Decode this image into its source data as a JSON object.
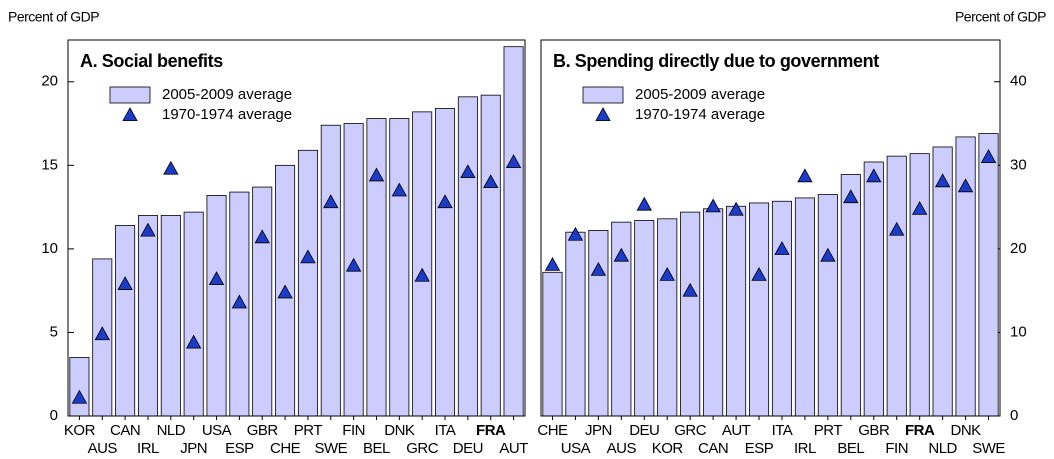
{
  "chart_data": [
    {
      "type": "bar",
      "title": "A. Social benefits",
      "ylabel": "Percent of GDP",
      "axis_side": "left",
      "highlight": "FRA",
      "categories": [
        "KOR",
        "AUS",
        "CAN",
        "IRL",
        "NLD",
        "JPN",
        "USA",
        "ESP",
        "GBR",
        "CHE",
        "PRT",
        "SWE",
        "FIN",
        "BEL",
        "DNK",
        "GRC",
        "ITA",
        "DEU",
        "FRA",
        "AUT"
      ],
      "series": [
        {
          "name": "2005-2009 average",
          "color": "#ccccff",
          "mark": "bar",
          "values": [
            3.5,
            9.4,
            11.4,
            12.0,
            12.0,
            12.2,
            13.2,
            13.4,
            13.7,
            15.0,
            15.9,
            17.4,
            17.5,
            17.8,
            17.8,
            18.2,
            18.4,
            19.1,
            19.2,
            22.1
          ]
        },
        {
          "name": "1970-1974 average",
          "color": "#1c3cc8",
          "mark": "triangle",
          "values": [
            1.1,
            4.9,
            7.9,
            11.1,
            14.8,
            4.4,
            8.2,
            6.8,
            10.7,
            7.4,
            9.5,
            12.8,
            9.0,
            14.4,
            13.5,
            8.4,
            12.8,
            14.6,
            14.0,
            15.2
          ]
        }
      ],
      "ylim": [
        0,
        22.5
      ],
      "yticks": [
        0,
        5,
        10,
        15,
        20
      ]
    },
    {
      "type": "bar",
      "title": "B. Spending directly due to government",
      "ylabel": "Percent of GDP",
      "axis_side": "right",
      "highlight": "FRA",
      "categories": [
        "CHE",
        "USA",
        "JPN",
        "AUS",
        "DEU",
        "KOR",
        "GRC",
        "CAN",
        "AUT",
        "ESP",
        "ITA",
        "IRL",
        "PRT",
        "BEL",
        "GBR",
        "FIN",
        "FRA",
        "NLD",
        "DNK",
        "SWE"
      ],
      "series": [
        {
          "name": "2005-2009 average",
          "color": "#ccccff",
          "mark": "bar",
          "values": [
            17.2,
            22.0,
            22.2,
            23.2,
            23.4,
            23.6,
            24.4,
            24.8,
            25.1,
            25.5,
            25.7,
            26.1,
            26.5,
            28.9,
            30.4,
            31.1,
            31.4,
            32.2,
            33.4,
            33.8
          ]
        },
        {
          "name": "1970-1974 average",
          "color": "#1c3cc8",
          "mark": "triangle",
          "values": [
            18.1,
            21.7,
            17.5,
            19.2,
            25.3,
            16.9,
            15.0,
            25.1,
            24.7,
            16.9,
            20.0,
            28.7,
            19.2,
            26.2,
            28.7,
            22.3,
            24.8,
            28.1,
            27.5,
            31.0
          ]
        }
      ],
      "ylim": [
        0,
        45
      ],
      "yticks": [
        0,
        10,
        20,
        30,
        40
      ]
    }
  ]
}
